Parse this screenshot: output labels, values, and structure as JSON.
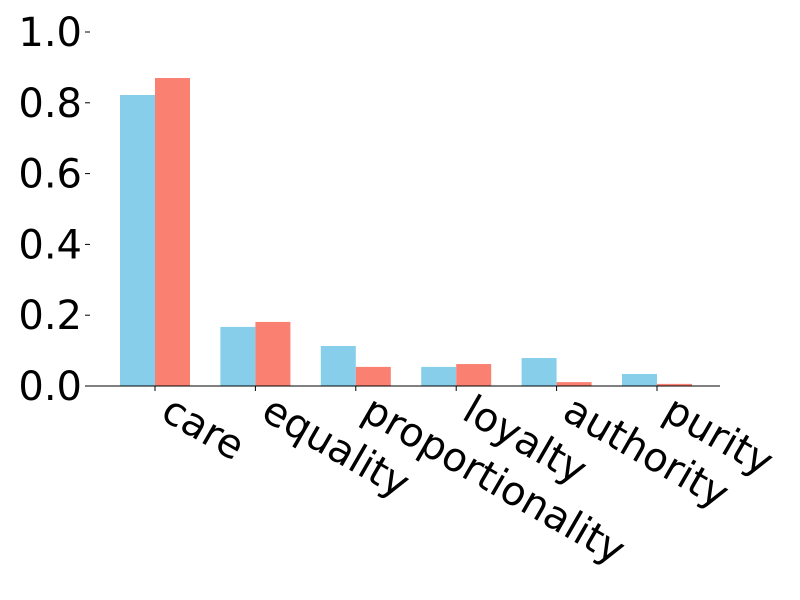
{
  "chart_data": {
    "type": "bar",
    "categories": [
      "care",
      "equality",
      "proportionality",
      "loyalty",
      "authority",
      "purity"
    ],
    "series": [
      {
        "color": "#87ceeb",
        "values": [
          0.822,
          0.167,
          0.113,
          0.054,
          0.079,
          0.034
        ]
      },
      {
        "color": "#fa8072",
        "values": [
          0.87,
          0.181,
          0.054,
          0.062,
          0.011,
          0.006
        ]
      }
    ],
    "ylim": [
      0,
      1.0
    ],
    "yticks": [
      {
        "value": 0,
        "label": "0.0"
      },
      {
        "value": 0.2,
        "label": "0.2"
      },
      {
        "value": 0.4,
        "label": "0.4"
      },
      {
        "value": 0.6,
        "label": "0.6"
      },
      {
        "value": 0.8,
        "label": "0.8"
      },
      {
        "value": 1.0,
        "label": "1.0"
      }
    ]
  }
}
